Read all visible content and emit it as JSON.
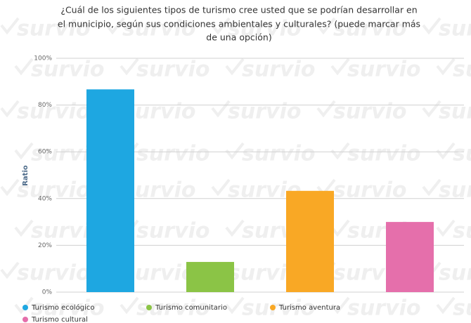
{
  "chart_data": {
    "type": "bar",
    "title": [
      "¿Cuál de los siguientes tipos de turismo cree usted que se podrían desarrollar en",
      "el municipio, según sus condiciones ambientales y culturales? (puede marcar más",
      "de una opción)"
    ],
    "y_label": "Ratio",
    "watermark": "survio",
    "categories": [
      "Turismo ecológico",
      "Turismo comunitario",
      "Turismo aventura",
      "Turismo cultural"
    ],
    "values": [
      86.7,
      12.9,
      43.3,
      30
    ],
    "colors": [
      "#1ea7e1",
      "#8bc446",
      "#f9a825",
      "#e56fab"
    ],
    "ylim": [
      0,
      100
    ],
    "yticks": [
      {
        "value": 0,
        "label": "0%"
      },
      {
        "value": 20,
        "label": "20%"
      },
      {
        "value": 40,
        "label": "40%"
      },
      {
        "value": 60,
        "label": "60%"
      },
      {
        "value": 80,
        "label": "80%"
      },
      {
        "value": 100,
        "label": "100%"
      }
    ],
    "grid": true
  }
}
